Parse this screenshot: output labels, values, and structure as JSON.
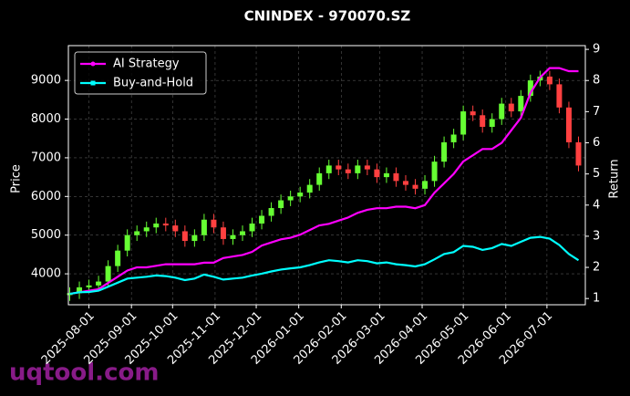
{
  "chart_data": {
    "type": "candlestick",
    "title": "CNINDEX - 970070.SZ",
    "y_label": "Price",
    "y2_label": "Return",
    "watermark": "uqtool.com",
    "x": [
      "2025-07-18",
      "2025-07-25",
      "2025-08-01",
      "2025-08-08",
      "2025-08-15",
      "2025-08-22",
      "2025-08-29",
      "2025-09-05",
      "2025-09-12",
      "2025-09-19",
      "2025-09-26",
      "2025-10-03",
      "2025-10-10",
      "2025-10-17",
      "2025-10-24",
      "2025-10-31",
      "2025-11-07",
      "2025-11-14",
      "2025-11-21",
      "2025-11-28",
      "2025-12-05",
      "2025-12-12",
      "2025-12-19",
      "2025-12-26",
      "2026-01-02",
      "2026-01-09",
      "2026-01-16",
      "2026-01-23",
      "2026-01-30",
      "2026-02-06",
      "2026-02-13",
      "2026-02-20",
      "2026-02-27",
      "2026-03-06",
      "2026-03-13",
      "2026-03-20",
      "2026-03-27",
      "2026-04-03",
      "2026-04-10",
      "2026-04-17",
      "2026-04-24",
      "2026-05-01",
      "2026-05-08",
      "2026-05-15",
      "2026-05-22",
      "2026-05-29",
      "2026-06-05",
      "2026-06-12",
      "2026-06-19",
      "2026-06-26",
      "2026-07-03",
      "2026-07-10",
      "2026-07-17",
      "2026-07-24"
    ],
    "candles": {
      "up_color": "#66ff33",
      "down_color": "#ff4040",
      "open": [
        3450,
        3500,
        3650,
        3700,
        3800,
        4200,
        4600,
        5000,
        5100,
        5200,
        5300,
        5250,
        5100,
        4850,
        5000,
        5400,
        5200,
        4900,
        5000,
        5100,
        5300,
        5500,
        5700,
        5900,
        6000,
        6100,
        6300,
        6600,
        6800,
        6700,
        6600,
        6800,
        6700,
        6500,
        6600,
        6400,
        6300,
        6200,
        6400,
        6900,
        7400,
        7600,
        8200,
        8100,
        7800,
        8000,
        8400,
        8200,
        8600,
        9000,
        9100,
        8900,
        8300,
        7400
      ],
      "high": [
        3650,
        3800,
        3850,
        3950,
        4350,
        4750,
        5150,
        5250,
        5350,
        5450,
        5450,
        5400,
        5250,
        5150,
        5550,
        5550,
        5350,
        5150,
        5250,
        5450,
        5650,
        5850,
        6050,
        6150,
        6250,
        6450,
        6750,
        6950,
        6950,
        6850,
        6950,
        6950,
        6850,
        6750,
        6750,
        6550,
        6450,
        6550,
        7050,
        7550,
        7750,
        8350,
        8350,
        8250,
        8150,
        8550,
        8550,
        8750,
        9150,
        9250,
        9250,
        9050,
        8450,
        7550
      ],
      "low": [
        3300,
        3350,
        3500,
        3550,
        3650,
        4050,
        4450,
        4850,
        4950,
        5050,
        5100,
        4950,
        4700,
        4700,
        4850,
        5050,
        4750,
        4750,
        4850,
        4950,
        5150,
        5350,
        5550,
        5750,
        5850,
        5950,
        6150,
        6450,
        6550,
        6450,
        6450,
        6550,
        6350,
        6350,
        6250,
        6150,
        6050,
        6050,
        6250,
        6750,
        7250,
        7450,
        7950,
        7650,
        7650,
        7850,
        8050,
        8050,
        8450,
        8850,
        8750,
        8150,
        7250,
        6650
      ],
      "close": [
        3500,
        3650,
        3700,
        3800,
        4200,
        4600,
        5000,
        5100,
        5200,
        5300,
        5250,
        5100,
        4850,
        5000,
        5400,
        5200,
        4900,
        5000,
        5100,
        5300,
        5500,
        5700,
        5900,
        6000,
        6100,
        6300,
        6600,
        6800,
        6700,
        6600,
        6800,
        6700,
        6500,
        6600,
        6400,
        6300,
        6200,
        6400,
        6900,
        7400,
        7600,
        8200,
        8100,
        7800,
        8000,
        8400,
        8200,
        8600,
        9000,
        9100,
        8900,
        8300,
        7400,
        6800
      ]
    },
    "series": [
      {
        "name": "AI Strategy",
        "color": "#ff00ff",
        "axis": "y2",
        "values": [
          1.15,
          1.2,
          1.25,
          1.3,
          1.5,
          1.7,
          1.9,
          2.0,
          2.0,
          2.05,
          2.1,
          2.1,
          2.1,
          2.1,
          2.15,
          2.15,
          2.3,
          2.35,
          2.4,
          2.5,
          2.7,
          2.8,
          2.9,
          2.95,
          3.05,
          3.2,
          3.35,
          3.4,
          3.5,
          3.6,
          3.75,
          3.85,
          3.9,
          3.9,
          3.95,
          3.95,
          3.9,
          4.0,
          4.4,
          4.7,
          5.0,
          5.4,
          5.6,
          5.8,
          5.8,
          6.0,
          6.4,
          6.8,
          7.6,
          8.1,
          8.4,
          8.4,
          8.3,
          8.3
        ]
      },
      {
        "name": "Buy-and-Hold",
        "color": "#00ffff",
        "axis": "y2",
        "values": [
          1.15,
          1.2,
          1.21,
          1.25,
          1.38,
          1.51,
          1.64,
          1.67,
          1.7,
          1.74,
          1.72,
          1.67,
          1.59,
          1.64,
          1.77,
          1.7,
          1.61,
          1.64,
          1.67,
          1.74,
          1.8,
          1.87,
          1.93,
          1.97,
          2.0,
          2.07,
          2.16,
          2.23,
          2.2,
          2.16,
          2.23,
          2.2,
          2.13,
          2.16,
          2.1,
          2.07,
          2.03,
          2.1,
          2.26,
          2.43,
          2.49,
          2.69,
          2.66,
          2.56,
          2.62,
          2.75,
          2.69,
          2.82,
          2.95,
          2.98,
          2.92,
          2.72,
          2.43,
          2.23
        ]
      }
    ],
    "xlim": [
      "2025-07-17",
      "2026-07-29"
    ],
    "xticks": [
      "2025-08-01",
      "2025-09-01",
      "2025-10-01",
      "2025-11-01",
      "2025-12-01",
      "2026-01-01",
      "2026-02-01",
      "2026-03-01",
      "2026-04-01",
      "2026-05-01",
      "2026-06-01",
      "2026-07-01"
    ],
    "ylim": [
      3200,
      9900
    ],
    "yticks": [
      4000,
      5000,
      6000,
      7000,
      8000,
      9000
    ],
    "y2lim": [
      0.8,
      9.12
    ],
    "y2ticks": [
      1,
      2,
      3,
      4,
      5,
      6,
      7,
      8,
      9
    ],
    "grid": true,
    "legend": "upper left"
  }
}
